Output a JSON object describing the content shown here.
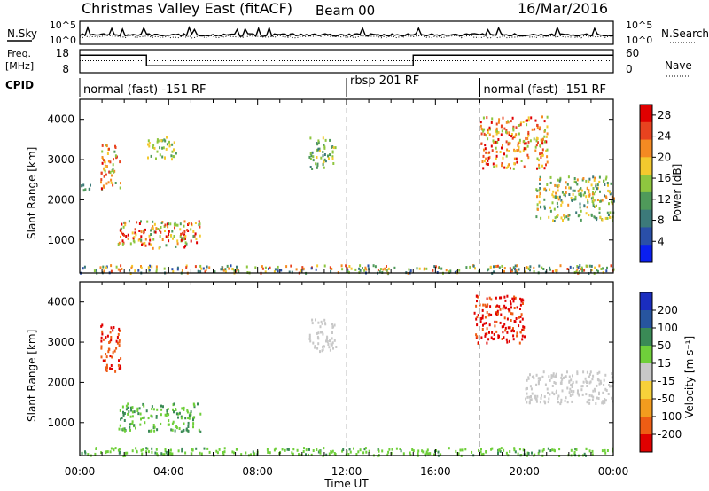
{
  "header": {
    "title": "Christmas Valley East (fitACF)",
    "beam": "Beam 00",
    "date": "16/Mar/2016"
  },
  "labels": {
    "nsky": "N.Sky",
    "nsearch": "N.Search",
    "freq": "Freq.",
    "freq_unit": "[MHz]",
    "nave": "Nave",
    "cpid": "CPID",
    "y_slant": "Slant Range [km]",
    "x_time": "Time UT",
    "power_cb": "Power [dB]",
    "velocity_cb": "Velocity [m s⁻¹]"
  },
  "noise_panel": {
    "left_ticks": [
      "10^5",
      "10^0"
    ],
    "right_ticks": [
      "10^5",
      "10^0"
    ]
  },
  "freq_panel": {
    "left_ticks": [
      "18",
      "8"
    ],
    "right_ticks": [
      "60",
      "0"
    ],
    "freq_steps": [
      {
        "t": 0,
        "f": 15.6
      },
      {
        "t": 3,
        "f": 11.0
      },
      {
        "t": 15,
        "f": 15.6
      },
      {
        "t": 24,
        "f": 15.6
      }
    ],
    "nave_level": 13.2
  },
  "cpid_segments": [
    {
      "label": "normal (fast) -151 RF",
      "start": 0
    },
    {
      "label": "rbsp 201 RF",
      "start": 12
    },
    {
      "label": "normal (fast) -151 RF",
      "start": 18
    }
  ],
  "colors": {
    "power": [
      "#0a1ff0",
      "#2a4fa8",
      "#3c7a7a",
      "#4f9a5a",
      "#8ec63f",
      "#f3c92e",
      "#f48a22",
      "#e8431f",
      "#e00000"
    ],
    "velocity": [
      "#1a2dbf",
      "#27559f",
      "#3a8a56",
      "#6fcf3a",
      "#c8c8c8",
      "#f7d13a",
      "#f39c1e",
      "#ee5d14",
      "#e00000"
    ]
  },
  "chart_data": [
    {
      "type": "heatmap",
      "title": "Power",
      "x_unit": "hours UT",
      "xlim": [
        0,
        24
      ],
      "x_ticks": [
        "00:00",
        "04:00",
        "08:00",
        "12:00",
        "16:00",
        "20:00",
        "00:00"
      ],
      "ylim": [
        180,
        4500
      ],
      "y_ticks": [
        1000,
        2000,
        3000,
        4000
      ],
      "colorbar_ticks": [
        4,
        8,
        12,
        16,
        20,
        24,
        28
      ],
      "colorbar_range": [
        0,
        30
      ],
      "regions": [
        {
          "t0": 0.0,
          "t1": 0.6,
          "r0": 2200,
          "r1": 2450,
          "v0": 8,
          "v1": 14
        },
        {
          "t0": 0.9,
          "t1": 1.8,
          "r0": 2300,
          "r1": 3400,
          "v0": 12,
          "v1": 28
        },
        {
          "t0": 1.7,
          "t1": 5.4,
          "r0": 800,
          "r1": 1500,
          "v0": 10,
          "v1": 30
        },
        {
          "t0": 3.0,
          "t1": 4.3,
          "r0": 3000,
          "r1": 3600,
          "v0": 10,
          "v1": 20
        },
        {
          "t0": 10.3,
          "t1": 11.5,
          "r0": 2800,
          "r1": 3600,
          "v0": 8,
          "v1": 18
        },
        {
          "t0": 18.0,
          "t1": 21.0,
          "r0": 2800,
          "r1": 4100,
          "v0": 14,
          "v1": 30
        },
        {
          "t0": 20.5,
          "t1": 24.0,
          "r0": 1500,
          "r1": 2600,
          "v0": 8,
          "v1": 22
        },
        {
          "t0": 0.0,
          "t1": 24.0,
          "r0": 200,
          "r1": 400,
          "v0": 4,
          "v1": 26
        }
      ]
    },
    {
      "type": "heatmap",
      "title": "Velocity",
      "x_unit": "hours UT",
      "xlim": [
        0,
        24
      ],
      "x_ticks": [
        "00:00",
        "04:00",
        "08:00",
        "12:00",
        "16:00",
        "20:00",
        "00:00"
      ],
      "ylim": [
        180,
        4500
      ],
      "y_ticks": [
        1000,
        2000,
        3000,
        4000
      ],
      "colorbar_ticks": [
        "200",
        "100",
        "50",
        "15",
        "-15",
        "-50",
        "-100",
        "-200"
      ],
      "regions": [
        {
          "t0": 0.9,
          "t1": 1.8,
          "r0": 2300,
          "r1": 3500,
          "v0": -250,
          "v1": -150
        },
        {
          "t0": 1.7,
          "t1": 5.4,
          "r0": 800,
          "r1": 1500,
          "v0": 15,
          "v1": 80
        },
        {
          "t0": 10.3,
          "t1": 11.5,
          "r0": 2800,
          "r1": 3600,
          "v0": -10,
          "v1": 10
        },
        {
          "t0": 17.7,
          "t1": 20.0,
          "r0": 3000,
          "r1": 4200,
          "v0": -250,
          "v1": -180
        },
        {
          "t0": 20.0,
          "t1": 24.0,
          "r0": 1500,
          "r1": 2300,
          "v0": -10,
          "v1": 10
        },
        {
          "t0": 0.0,
          "t1": 24.0,
          "r0": 200,
          "r1": 400,
          "v0": 15,
          "v1": 60
        }
      ]
    }
  ]
}
